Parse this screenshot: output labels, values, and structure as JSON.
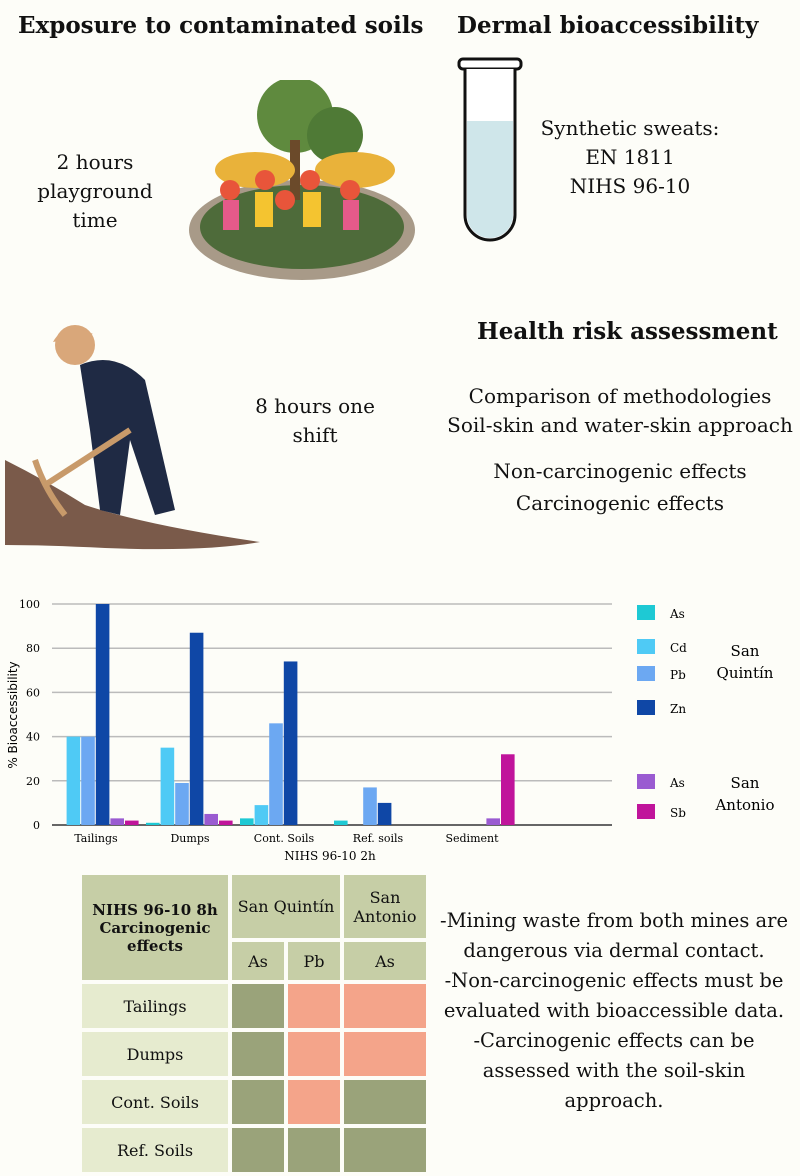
{
  "exposure": {
    "title": "Exposure to contaminated soils",
    "children_text": "2 hours playground time",
    "worker_text": "8 hours one shift"
  },
  "dermal": {
    "title": "Dermal bioaccessibility",
    "sweats_label": "Synthetic sweats:",
    "sweats": [
      "EN 1811",
      "NIHS 96-10"
    ]
  },
  "health": {
    "title": "Health risk assessment",
    "lines": [
      "Comparison of methodologies",
      "Soil-skin and water-skin approach",
      "Non-carcinogenic effects",
      "Carcinogenic effects"
    ]
  },
  "chart_data": {
    "type": "bar",
    "title": "",
    "xlabel": "NIHS 96-10 2h",
    "ylabel": "% Bioaccessibility",
    "ylim": [
      0,
      100
    ],
    "yticks": [
      0,
      20,
      40,
      60,
      80,
      100
    ],
    "grid": true,
    "legend_placement": "right",
    "categories": [
      "Tailings",
      "Dumps",
      "Cont. Soils",
      "Ref. soils",
      "Sediment"
    ],
    "legend_groups": [
      "San Quintín",
      "San Antonio"
    ],
    "series": [
      {
        "name": "As",
        "group": "San Quintín",
        "color": "#1ec9d4",
        "values": [
          0,
          1,
          3,
          2,
          0
        ]
      },
      {
        "name": "Cd",
        "group": "San Quintín",
        "color": "#4fcaf5",
        "values": [
          40,
          35,
          9,
          0,
          0
        ]
      },
      {
        "name": "Pb",
        "group": "San Quintín",
        "color": "#6ca8f2",
        "values": [
          40,
          19,
          46,
          17,
          0
        ]
      },
      {
        "name": "Zn",
        "group": "San Quintín",
        "color": "#0f47a6",
        "values": [
          100,
          87,
          74,
          10,
          0
        ]
      },
      {
        "name": "As",
        "group": "San Antonio",
        "color": "#9a5bd1",
        "values": [
          3,
          5,
          0,
          0,
          3
        ]
      },
      {
        "name": "Sb",
        "group": "San Antonio",
        "color": "#c0149b",
        "values": [
          2,
          2,
          0,
          0,
          32
        ]
      }
    ]
  },
  "table": {
    "corner": "NIHS 96-10 8h Carcinogenic effects",
    "sites": [
      "San Quintín",
      "San Antonio"
    ],
    "elements": [
      "As",
      "Pb",
      "As"
    ],
    "rows": [
      {
        "label": "Tailings",
        "cells": [
          "green",
          "red",
          "red"
        ]
      },
      {
        "label": "Dumps",
        "cells": [
          "green",
          "red",
          "red"
        ]
      },
      {
        "label": "Cont. Soils",
        "cells": [
          "green",
          "red",
          "green"
        ]
      },
      {
        "label": "Ref. Soils",
        "cells": [
          "green",
          "green",
          "green"
        ]
      }
    ],
    "colors": {
      "green": "#9aa37a",
      "red": "#f4a48a"
    }
  },
  "conclusions": [
    "-Mining waste from both mines are dangerous via dermal contact.",
    "-Non-carcinogenic effects must be evaluated with bioaccessible data.",
    "-Carcinogenic effects can be assessed with the soil-skin approach."
  ]
}
